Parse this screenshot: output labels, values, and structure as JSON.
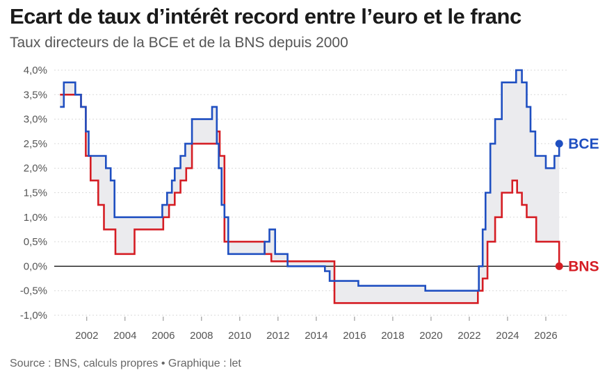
{
  "header": {
    "title": "Ecart de taux d’intérêt record entre l’euro et le franc",
    "subtitle": "Taux directeurs de la BCE et de la BNS depuis 2000"
  },
  "footer": {
    "source": "Source : BNS, calculs propres • Graphique : let"
  },
  "colors": {
    "bce": "#1f4fc1",
    "bns": "#d51d24",
    "gap_fill": "#ebebee",
    "grid": "#d9d9d9",
    "zero_line": "#111111"
  },
  "chart_data": {
    "type": "line",
    "title": "Taux directeurs de la BCE et de la BNS depuis 2000",
    "xlim": [
      2000.3,
      2027.2
    ],
    "ylim": [
      -1.0,
      4.0
    ],
    "x_ticks": [
      2002,
      2004,
      2006,
      2008,
      2010,
      2012,
      2014,
      2016,
      2018,
      2020,
      2022,
      2024,
      2026
    ],
    "x_tick_labels": [
      "2002",
      "2004",
      "2006",
      "2008",
      "2010",
      "2012",
      "2014",
      "2016",
      "2018",
      "2020",
      "2022",
      "2024",
      "2026"
    ],
    "y_ticks": [
      -1.0,
      -0.5,
      0.0,
      0.5,
      1.0,
      1.5,
      2.0,
      2.5,
      3.0,
      3.5,
      4.0
    ],
    "y_tick_labels": [
      "-1,0%",
      "-0,5%",
      "0,0%",
      "0,5%",
      "1,0%",
      "1,5%",
      "2,0%",
      "2,5%",
      "3,0%",
      "3,5%",
      "4,0%"
    ],
    "grid": "horizontal",
    "gap_shaded": true,
    "series": [
      {
        "name": "BCE",
        "end_label": "BCE",
        "color": "#1f4fc1",
        "step": true,
        "x": [
          2000.6,
          2000.8,
          2001.4,
          2001.7,
          2001.95,
          2002.1,
          2003.0,
          2003.25,
          2003.45,
          2005.95,
          2006.2,
          2006.45,
          2006.6,
          2006.9,
          2007.15,
          2007.5,
          2008.55,
          2008.8,
          2008.9,
          2009.05,
          2009.2,
          2009.4,
          2011.3,
          2011.55,
          2011.85,
          2012.5,
          2014.45,
          2014.7,
          2016.2,
          2019.7,
          2022.5,
          2022.7,
          2022.85,
          2023.1,
          2023.35,
          2023.7,
          2024.45,
          2024.75,
          2025.0,
          2025.2,
          2025.45,
          2026.0,
          2026.25,
          2026.45,
          2026.7
        ],
        "values": [
          3.25,
          3.75,
          3.5,
          3.25,
          2.75,
          2.25,
          2.0,
          1.75,
          1.0,
          1.25,
          1.5,
          1.75,
          2.0,
          2.25,
          2.5,
          3.0,
          3.25,
          2.5,
          2.0,
          1.25,
          1.0,
          0.25,
          0.5,
          0.75,
          0.25,
          0.0,
          -0.1,
          -0.3,
          -0.4,
          -0.5,
          0.0,
          0.75,
          1.5,
          2.5,
          3.0,
          3.75,
          4.0,
          3.75,
          3.25,
          2.75,
          2.25,
          2.0,
          2.0,
          2.25,
          2.5
        ]
      },
      {
        "name": "BNS",
        "end_label": "BNS",
        "color": "#d51d24",
        "step": true,
        "x": [
          2000.6,
          2001.7,
          2001.95,
          2002.2,
          2002.6,
          2002.9,
          2003.5,
          2004.5,
          2006.0,
          2006.3,
          2006.6,
          2006.9,
          2007.2,
          2007.5,
          2008.8,
          2008.95,
          2009.2,
          2011.3,
          2011.65,
          2014.95,
          2022.45,
          2022.7,
          2022.95,
          2023.35,
          2023.7,
          2024.25,
          2024.5,
          2024.75,
          2025.0,
          2025.5,
          2026.7
        ],
        "values": [
          3.5,
          3.25,
          2.25,
          1.75,
          1.25,
          0.75,
          0.25,
          0.75,
          1.0,
          1.25,
          1.5,
          1.75,
          2.0,
          2.5,
          2.75,
          2.25,
          0.5,
          0.25,
          0.1,
          -0.75,
          -0.5,
          -0.25,
          0.5,
          1.0,
          1.5,
          1.75,
          1.5,
          1.25,
          1.0,
          0.5,
          0.0
        ]
      }
    ]
  }
}
